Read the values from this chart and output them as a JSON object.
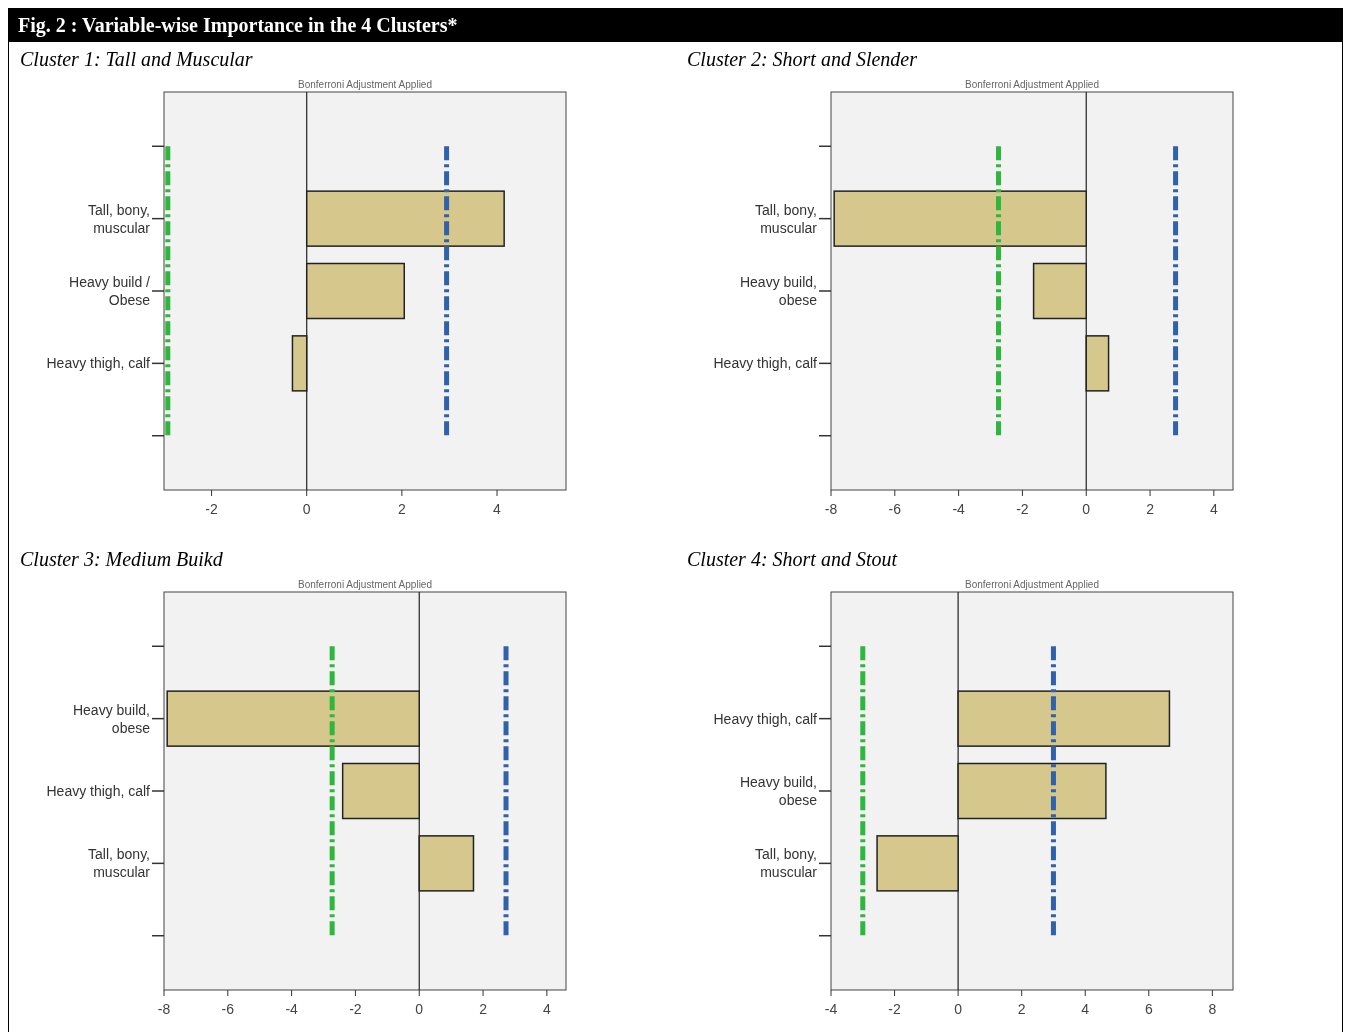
{
  "chart_data": [
    {
      "type": "bar",
      "orientation": "horizontal",
      "title": "Cluster 1: Tall and Muscular",
      "subtitle": "Bonferroni Adjustment Applied",
      "annotations": [
        "Fig. 2 : Variable-wise Importance in the 4 Clusters*"
      ],
      "categories": [
        null,
        "Tall, bony, muscular",
        "Heavy build / Obese",
        "Heavy thigh, calf",
        null
      ],
      "values": [
        null,
        4.15,
        2.05,
        -0.3,
        null
      ],
      "color": "#d6c88c",
      "xlim": [
        -3,
        5.45
      ],
      "xticks": [
        -2,
        0,
        2,
        4
      ],
      "ref_lines": [
        {
          "axis": "x",
          "value": -2.92,
          "color": "#2db83d",
          "line_style": "dashed"
        },
        {
          "axis": "x",
          "value": 2.94,
          "color": "#2f62a8",
          "line_style": "dashed"
        }
      ]
    },
    {
      "type": "bar",
      "orientation": "horizontal",
      "title": "Cluster 2: Short and Slender",
      "subtitle": "Bonferroni Adjustment Applied",
      "categories": [
        null,
        "Tall, bony, muscular",
        "Heavy build, obese",
        "Heavy thigh, calf",
        null
      ],
      "values": [
        null,
        -7.9,
        -1.65,
        0.7,
        null
      ],
      "color": "#d6c88c",
      "xlim": [
        -8,
        4.6
      ],
      "xticks": [
        -8,
        -6,
        -4,
        -2,
        0,
        2,
        4
      ],
      "ref_lines": [
        {
          "axis": "x",
          "value": -2.75,
          "color": "#2db83d",
          "line_style": "dashed"
        },
        {
          "axis": "x",
          "value": 2.8,
          "color": "#2f62a8",
          "line_style": "dashed"
        }
      ]
    },
    {
      "type": "bar",
      "orientation": "horizontal",
      "title": "Cluster 3: Medium Buikd",
      "subtitle": "Bonferroni Adjustment Applied",
      "categories": [
        null,
        "Heavy build, obese",
        "Heavy thigh, calf",
        "Tall, bony, muscular",
        null
      ],
      "values": [
        null,
        -7.9,
        -2.4,
        1.7,
        null
      ],
      "color": "#d6c88c",
      "xlim": [
        -8,
        4.6
      ],
      "xticks": [
        -8,
        -6,
        -4,
        -2,
        0,
        2,
        4
      ],
      "ref_lines": [
        {
          "axis": "x",
          "value": -2.73,
          "color": "#2db83d",
          "line_style": "dashed"
        },
        {
          "axis": "x",
          "value": 2.72,
          "color": "#2f62a8",
          "line_style": "dashed"
        }
      ]
    },
    {
      "type": "bar",
      "orientation": "horizontal",
      "title": "Cluster 4: Short and Stout",
      "subtitle": "Bonferroni Adjustment Applied",
      "categories": [
        null,
        "Heavy thigh, calf",
        "Heavy build, obese",
        "Tall, bony, muscular",
        null
      ],
      "values": [
        null,
        6.65,
        4.65,
        -2.55,
        null
      ],
      "color": "#d6c88c",
      "xlim": [
        -4,
        8.65
      ],
      "xticks": [
        -4,
        -2,
        0,
        2,
        4,
        6,
        8
      ],
      "ref_lines": [
        {
          "axis": "x",
          "value": -3.0,
          "color": "#2db83d",
          "line_style": "dashed"
        },
        {
          "axis": "x",
          "value": 3.0,
          "color": "#2f62a8",
          "line_style": "dashed"
        }
      ]
    }
  ]
}
